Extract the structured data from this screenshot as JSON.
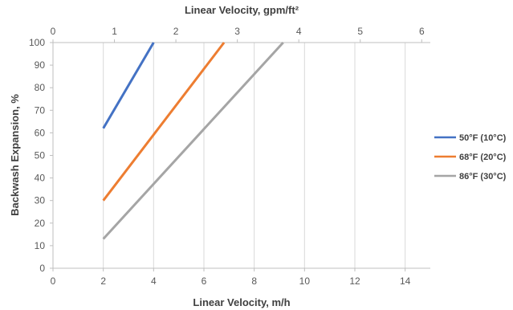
{
  "chart_data": {
    "type": "line",
    "xlabel": "Linear Velocity, m/h",
    "x2label": "Linear Velocity, gpm/ft²",
    "ylabel": "Backwash Expansion, %",
    "xlim": [
      0,
      15
    ],
    "x2lim": [
      0,
      6.14
    ],
    "ylim": [
      0,
      100
    ],
    "xticks": [
      "0",
      "2",
      "4",
      "6",
      "8",
      "10",
      "12",
      "14"
    ],
    "x2ticks": [
      "0",
      "1",
      "2",
      "3",
      "4",
      "5",
      "6"
    ],
    "yticks": [
      "0",
      "10",
      "20",
      "30",
      "40",
      "50",
      "60",
      "70",
      "80",
      "90",
      "100"
    ],
    "grid": "vertical",
    "legend": "right",
    "series": [
      {
        "name": "50°F (10°C)",
        "color": "#4472C4",
        "x": [
          2,
          4
        ],
        "y": [
          62,
          100
        ]
      },
      {
        "name": "68°F (20°C)",
        "color": "#ED7D31",
        "x": [
          2,
          6.8
        ],
        "y": [
          30,
          100
        ]
      },
      {
        "name": "86°F (30°C)",
        "color": "#A5A5A5",
        "x": [
          2,
          9.15
        ],
        "y": [
          13,
          100
        ]
      }
    ]
  }
}
